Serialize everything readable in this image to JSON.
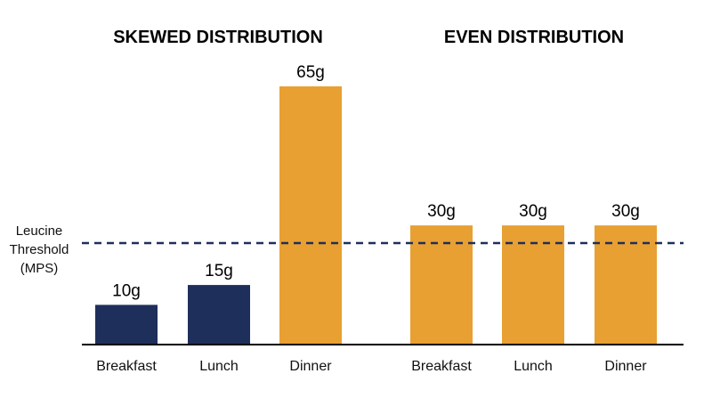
{
  "chart_data": [
    {
      "type": "bar",
      "title": "SKEWED DISTRIBUTION",
      "categories": [
        "Breakfast",
        "Lunch",
        "Dinner"
      ],
      "values": [
        10,
        15,
        65
      ],
      "value_labels": [
        "10g",
        "15g",
        "65g"
      ],
      "colors": [
        "#1f2f5c",
        "#1f2f5c",
        "#e8a032"
      ],
      "ylim": [
        0,
        70
      ],
      "grid": false
    },
    {
      "type": "bar",
      "title": "EVEN DISTRIBUTION",
      "categories": [
        "Breakfast",
        "Lunch",
        "Dinner"
      ],
      "values": [
        30,
        30,
        30
      ],
      "value_labels": [
        "30g",
        "30g",
        "30g"
      ],
      "colors": [
        "#e8a032",
        "#e8a032",
        "#e8a032"
      ],
      "ylim": [
        0,
        70
      ],
      "grid": false
    }
  ],
  "threshold": {
    "label_lines": [
      "Leucine",
      "Threshold",
      "(MPS)"
    ],
    "color": "#1f2f5c"
  },
  "colors": {
    "navy": "#1f2f5c",
    "orange": "#e8a032",
    "axis": "#000000"
  }
}
